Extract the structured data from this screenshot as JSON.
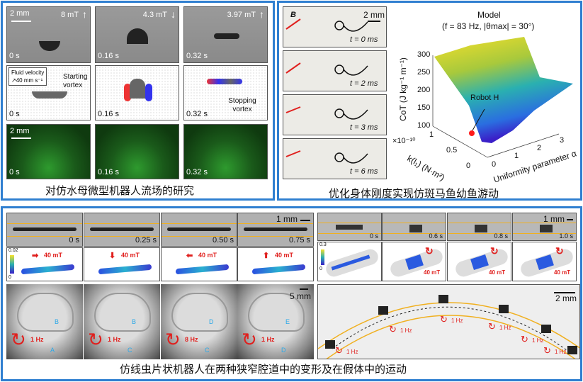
{
  "panel_jellyfish": {
    "caption": "对仿水母微型机器人流场的研究",
    "row1": [
      {
        "time": "0 s",
        "field": "8 mT",
        "arrow": "up"
      },
      {
        "time": "0.16 s",
        "field": "4.3 mT",
        "arrow": "down"
      },
      {
        "time": "0.32 s",
        "field": "3.97 mT",
        "arrow": "up"
      }
    ],
    "scale": "2 mm",
    "row2": [
      {
        "time": "0 s"
      },
      {
        "time": "0.16 s"
      },
      {
        "time": "0.32 s"
      }
    ],
    "legend_title": "Fluid velocity",
    "legend_value": "40 mm s⁻¹",
    "starting_vortex": "Starting vortex",
    "stopping_vortex": "Stopping vortex",
    "row3": [
      {
        "time": "0 s"
      },
      {
        "time": "0.16 s"
      },
      {
        "time": "0.32 s"
      }
    ],
    "scale3": "2 mm"
  },
  "panel_zebrafish": {
    "caption": "优化身体刚度实现仿斑马鱼幼鱼游动",
    "field_label": "B",
    "scale": "2 mm",
    "frames": [
      "t = 0  ms",
      "t = 2 ms",
      "t = 3 ms",
      "t = 6 ms"
    ],
    "chart": {
      "title": "Model",
      "subtitle": "(f = 83 Hz, |θmax| = 30°)",
      "zlabel": "CoT (J kg⁻¹ m⁻¹)",
      "zticks": [
        "300",
        "250",
        "200",
        "150",
        "100"
      ],
      "ylabel": "k(l₁) (N·m²)",
      "yticks": [
        "1",
        "0.5",
        "0"
      ],
      "yexp": "×10⁻¹⁰",
      "xlabel": "Uniformity parameter α",
      "xticks": [
        "0",
        "1",
        "2",
        "3"
      ],
      "annotation": "Robot H",
      "marker_color": "#ff1a1a"
    }
  },
  "panel_worm": {
    "caption": "仿线虫片状机器人在两种狭窄腔道中的变形及在假体中的运动",
    "left_times": [
      "0 s",
      "0.25 s",
      "0.50 s",
      "0.75 s"
    ],
    "left_scale": "1 mm",
    "sim_field": [
      "40 mT",
      "40 mT",
      "40 mT",
      "40 mT"
    ],
    "sim_arrows": [
      "right",
      "down",
      "left",
      "up"
    ],
    "colorbar_left": {
      "max": "0.02",
      "min": "0"
    },
    "brain": [
      {
        "freq": "1 Hz",
        "labels": [
          "B",
          "A"
        ]
      },
      {
        "freq": "1 Hz",
        "labels": [
          "B",
          "C"
        ]
      },
      {
        "freq": "8 Hz",
        "labels": [
          "D",
          "C"
        ]
      },
      {
        "freq": "1 Hz",
        "labels": [
          "E",
          "D"
        ]
      }
    ],
    "brain_scale": "5 mm",
    "right_times": [
      "0 s",
      "0.6 s",
      "0.8 s",
      "1.0 s"
    ],
    "right_scale": "1 mm",
    "colorbar_right": {
      "max": "0.3",
      "min": "0"
    },
    "tube_field": [
      "40 mT",
      "40 mT",
      "40 mT"
    ],
    "arch_scale": "2 mm",
    "arch_freqs": [
      "1 Hz",
      "1 Hz",
      "1 Hz",
      "1 Hz",
      "1 Hz",
      "1 Hz"
    ]
  },
  "colors": {
    "border": "#2f7fd0",
    "channel": "#f0b020",
    "arrow": "#e0201e",
    "path": "#2aa8e8"
  }
}
